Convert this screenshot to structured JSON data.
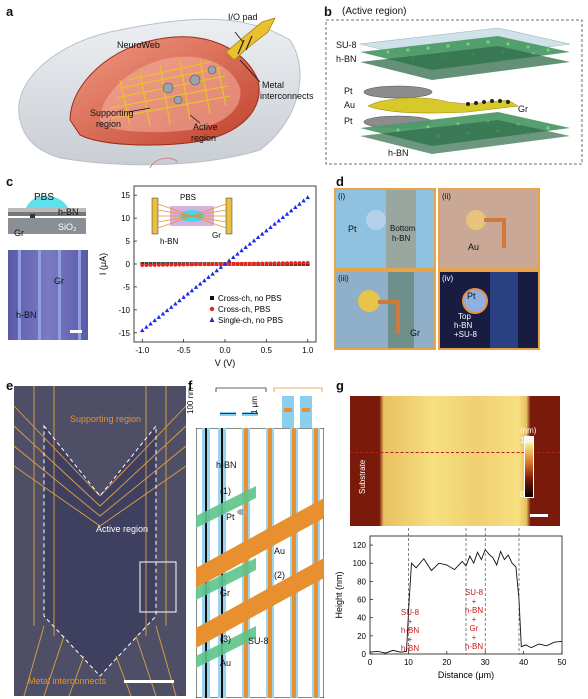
{
  "panels": {
    "a": {
      "letter": "a",
      "io_pad": "I/O pad",
      "neuroweb": "NeuroWeb",
      "metal": "Metal",
      "interconnects": "interconnects",
      "supporting": "Supporting",
      "region": "region",
      "active": "Active",
      "active_region": "region"
    },
    "b": {
      "letter": "b",
      "title": "(Active region)",
      "su8": "SU-8",
      "hbn_top": "h-BN",
      "pt_top": "Pt",
      "au": "Au",
      "gr": "Gr",
      "pt_bot": "Pt",
      "hbn_bot": "h-BN"
    },
    "c": {
      "letter": "c",
      "pbs": "PBS",
      "hbn": "h-BN",
      "gr": "Gr",
      "sio2": "SiO₂",
      "micro_gr": "Gr",
      "micro_hbn": "h-BN",
      "inset_pbs": "PBS",
      "inset_hbn": "h-BN",
      "inset_gr": "Gr",
      "legend": [
        "Cross-ch, no PBS",
        "Cross-ch, PBS",
        "Single-ch, no PBS"
      ]
    },
    "d": {
      "letter": "d",
      "i": "(i)",
      "ii": "(ii)",
      "iii": "(iii)",
      "iv": "(iv)",
      "pt_i": "Pt",
      "bottom": "Bottom",
      "bottom_hbn": "h-BN",
      "au_ii": "Au",
      "gr_iii": "Gr",
      "pt_iv": "Pt",
      "top": "Top",
      "top_hbn": "h-BN",
      "top_su8": "+SU-8"
    },
    "e": {
      "letter": "e",
      "supporting": "Supporting region",
      "active": "Active region",
      "metal": "Metal interconnects"
    },
    "f": {
      "letter": "f",
      "scale100": "100 nm",
      "scale1": "1 μm",
      "hbn": "h-BN",
      "n1": "(1)",
      "pt": "Pt",
      "au1": "Au",
      "n2": "(2)",
      "gr": "Gr",
      "n3": "(3)",
      "su8": "SU-8",
      "au2": "Au"
    },
    "g": {
      "letter": "g",
      "substrate": "Substrate",
      "cbar_unit": "(nm)",
      "cbar_max": "100",
      "cbar_min": "0",
      "ann1": [
        "SU-8",
        "+",
        "h-BN",
        "+",
        "h-BN"
      ],
      "ann2": [
        "SU-8",
        "+",
        "h-BN",
        "+",
        "Gr",
        "+",
        "h-BN"
      ]
    }
  },
  "chart_data": [
    {
      "type": "scatter",
      "panel": "c",
      "xlabel": "V (V)",
      "ylabel": "I (μA)",
      "xlim": [
        -1.1,
        1.1
      ],
      "ylim": [
        -17,
        17
      ],
      "xticks": [
        -1.0,
        -0.5,
        0.0,
        0.5,
        1.0
      ],
      "xtick_labels": [
        "-1.0",
        "-0.5",
        "0.0",
        "0.5",
        "1.0"
      ],
      "yticks": [
        -15,
        -10,
        -5,
        0,
        5,
        10,
        15
      ],
      "ytick_labels": [
        "-15",
        "-10",
        "-5",
        "0",
        "5",
        "10",
        "15"
      ],
      "series": [
        {
          "name": "Cross-ch, no PBS",
          "color": "#111111",
          "marker": "square",
          "slope": 0.0,
          "y_at_minus1": -0.05,
          "y_at_1": 0.05
        },
        {
          "name": "Cross-ch, PBS",
          "color": "#e8261a",
          "marker": "circle",
          "slope": 0.25,
          "y_at_minus1": -0.25,
          "y_at_1": 0.25
        },
        {
          "name": "Single-ch, no PBS",
          "color": "#1a2be8",
          "marker": "triangle",
          "slope": 14.5,
          "y_at_minus1": -14.5,
          "y_at_1": 14.5
        }
      ]
    },
    {
      "type": "line",
      "panel": "g",
      "xlabel": "Distance (μm)",
      "ylabel": "Height (nm)",
      "xlim": [
        0,
        50
      ],
      "ylim": [
        0,
        130
      ],
      "xticks": [
        0,
        10,
        20,
        30,
        40,
        50
      ],
      "yticks": [
        0,
        20,
        40,
        60,
        80,
        100,
        120
      ],
      "x": [
        0,
        2,
        4,
        6,
        8,
        9.5,
        10.2,
        10.8,
        12,
        14,
        16,
        18,
        20,
        22,
        24,
        25,
        26,
        27,
        28,
        29,
        30,
        31,
        32,
        33,
        34,
        35,
        36,
        37,
        38,
        38.8,
        39.4,
        40.5,
        42,
        44,
        46,
        48,
        50
      ],
      "y": [
        2,
        3,
        1,
        4,
        2,
        3,
        60,
        100,
        95,
        105,
        92,
        100,
        98,
        93,
        102,
        97,
        108,
        100,
        112,
        104,
        115,
        110,
        106,
        98,
        113,
        104,
        109,
        100,
        96,
        60,
        8,
        10,
        7,
        11,
        9,
        13,
        14
      ]
    }
  ]
}
